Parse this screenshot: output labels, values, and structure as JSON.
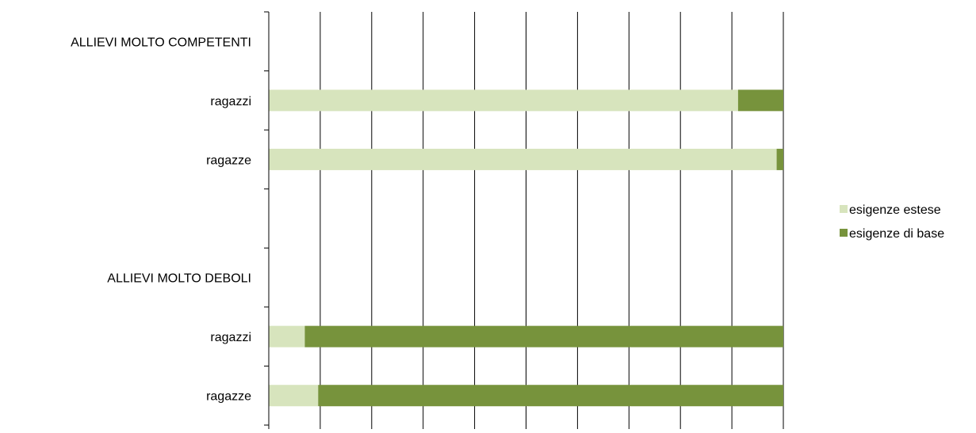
{
  "chart_data": {
    "type": "bar",
    "orientation": "horizontal",
    "stacked": "percent",
    "categories": [
      "ALLIEVI MOLTO COMPETENTI",
      "ragazzi",
      "ragazze",
      "",
      "ALLIEVI MOLTO DEBOLI",
      "ragazzi",
      "ragazze"
    ],
    "series": [
      {
        "name": "esigenze estese",
        "color": "#d7e4bd",
        "values": [
          null,
          91.2,
          98.7,
          null,
          null,
          7.0,
          9.6
        ]
      },
      {
        "name": "esigenze di base",
        "color": "#77933c",
        "values": [
          null,
          8.8,
          1.3,
          null,
          null,
          93.0,
          90.4
        ]
      }
    ],
    "xlim": [
      0,
      100
    ],
    "x_ticks": [
      "0%",
      "10%",
      "20%",
      "30%",
      "40%",
      "50%",
      "60%",
      "70%",
      "80%",
      "90%",
      "100%"
    ],
    "grid": "vertical",
    "legend_position": "right",
    "title": "",
    "xlabel": "",
    "ylabel": ""
  }
}
